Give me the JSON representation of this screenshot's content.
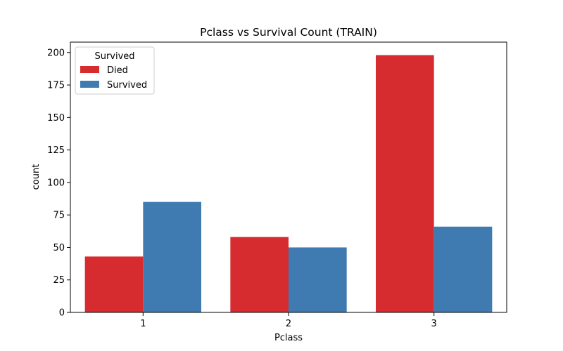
{
  "chart_data": {
    "type": "bar",
    "title": "Pclass vs Survival Count (TRAIN)",
    "xlabel": "Pclass",
    "ylabel": "count",
    "categories": [
      "1",
      "2",
      "3"
    ],
    "series": [
      {
        "name": "Died",
        "values": [
          43,
          58,
          198
        ]
      },
      {
        "name": "Survived",
        "values": [
          85,
          50,
          66
        ]
      }
    ],
    "ylim": [
      0,
      208
    ],
    "yticks": [
      0,
      25,
      50,
      75,
      100,
      125,
      150,
      175,
      200
    ],
    "legend": {
      "title": "Survived",
      "placement": "top-left"
    },
    "grid": false
  },
  "colors": {
    "series": [
      "#d62c2f",
      "#3f7bb0"
    ]
  }
}
